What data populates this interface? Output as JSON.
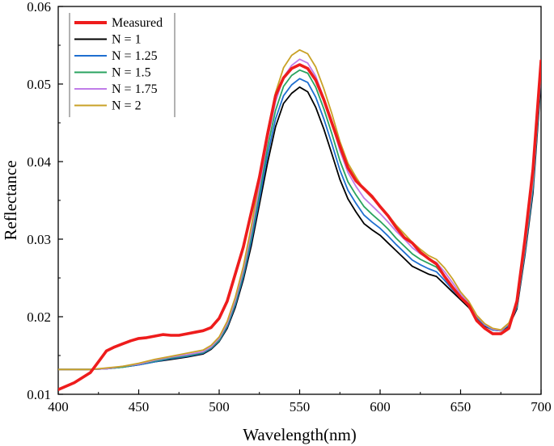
{
  "chart_data": {
    "type": "line",
    "title": "",
    "xlabel": "Wavelength(nm)",
    "ylabel": "Reflectance",
    "xlim": [
      400,
      700
    ],
    "ylim": [
      0.01,
      0.06
    ],
    "xticks": [
      400,
      450,
      500,
      550,
      600,
      650,
      700
    ],
    "yticks": [
      0.01,
      0.02,
      0.03,
      0.04,
      0.05,
      0.06
    ],
    "ytick_labels": [
      "0.01",
      "0.02",
      "0.03",
      "0.04",
      "0.05",
      "0.06"
    ],
    "grid": false,
    "legend_position": "top-left",
    "series": [
      {
        "name": "Measured",
        "color": "#ee1c1c",
        "emphasis": true,
        "x": [
          400,
          410,
          420,
          425,
          430,
          435,
          440,
          445,
          450,
          455,
          460,
          465,
          470,
          475,
          480,
          485,
          490,
          495,
          500,
          505,
          510,
          515,
          520,
          525,
          530,
          535,
          540,
          545,
          550,
          555,
          560,
          565,
          570,
          575,
          580,
          585,
          590,
          595,
          600,
          605,
          610,
          615,
          620,
          625,
          630,
          635,
          640,
          645,
          650,
          655,
          660,
          665,
          670,
          675,
          680,
          685,
          690,
          695,
          700
        ],
        "y": [
          0.0106,
          0.0115,
          0.0128,
          0.0142,
          0.0156,
          0.0161,
          0.0165,
          0.0169,
          0.0172,
          0.0173,
          0.0175,
          0.0177,
          0.0176,
          0.0176,
          0.0178,
          0.018,
          0.0182,
          0.0186,
          0.0198,
          0.022,
          0.0255,
          0.029,
          0.0335,
          0.038,
          0.0435,
          0.0485,
          0.0508,
          0.052,
          0.0525,
          0.052,
          0.0505,
          0.048,
          0.045,
          0.042,
          0.0392,
          0.0375,
          0.0365,
          0.0355,
          0.0342,
          0.033,
          0.0315,
          0.0302,
          0.0295,
          0.0283,
          0.0275,
          0.0268,
          0.0252,
          0.0238,
          0.0225,
          0.0215,
          0.0195,
          0.0185,
          0.0178,
          0.0178,
          0.0185,
          0.022,
          0.03,
          0.039,
          0.053
        ]
      },
      {
        "name": "N = 1",
        "color": "#000000",
        "emphasis": false,
        "x": [
          400,
          410,
          420,
          430,
          440,
          450,
          460,
          470,
          480,
          490,
          495,
          500,
          505,
          510,
          515,
          520,
          525,
          530,
          535,
          540,
          545,
          550,
          555,
          560,
          565,
          570,
          575,
          580,
          585,
          590,
          595,
          600,
          605,
          610,
          615,
          620,
          625,
          630,
          635,
          640,
          645,
          650,
          655,
          660,
          665,
          670,
          675,
          680,
          685,
          690,
          695,
          700
        ],
        "y": [
          0.0132,
          0.0132,
          0.0132,
          0.0133,
          0.0135,
          0.0138,
          0.0142,
          0.0145,
          0.0148,
          0.0152,
          0.0158,
          0.0168,
          0.0185,
          0.0212,
          0.0248,
          0.0292,
          0.0345,
          0.0398,
          0.0445,
          0.0475,
          0.0488,
          0.0496,
          0.049,
          0.047,
          0.0442,
          0.041,
          0.0377,
          0.0352,
          0.0335,
          0.032,
          0.0312,
          0.0305,
          0.0295,
          0.0285,
          0.0275,
          0.0265,
          0.026,
          0.0255,
          0.0252,
          0.0242,
          0.0232,
          0.0222,
          0.0212,
          0.0198,
          0.0188,
          0.0183,
          0.0182,
          0.0188,
          0.021,
          0.028,
          0.036,
          0.0505
        ]
      },
      {
        "name": "N = 1.25",
        "color": "#1f6fd0",
        "emphasis": false,
        "x": [
          400,
          410,
          420,
          430,
          440,
          450,
          460,
          470,
          480,
          490,
          495,
          500,
          505,
          510,
          515,
          520,
          525,
          530,
          535,
          540,
          545,
          550,
          555,
          560,
          565,
          570,
          575,
          580,
          585,
          590,
          595,
          600,
          605,
          610,
          615,
          620,
          625,
          630,
          635,
          640,
          645,
          650,
          655,
          660,
          665,
          670,
          675,
          680,
          685,
          690,
          695,
          700
        ],
        "y": [
          0.0132,
          0.0132,
          0.0132,
          0.0133,
          0.0135,
          0.0138,
          0.0142,
          0.0146,
          0.0149,
          0.0153,
          0.0159,
          0.0169,
          0.0187,
          0.0215,
          0.0252,
          0.0298,
          0.0352,
          0.0408,
          0.0455,
          0.0485,
          0.0499,
          0.0507,
          0.0502,
          0.0483,
          0.0455,
          0.0423,
          0.0389,
          0.0363,
          0.0346,
          0.0331,
          0.0322,
          0.0314,
          0.0304,
          0.0293,
          0.0283,
          0.0273,
          0.0267,
          0.0262,
          0.0258,
          0.0247,
          0.0235,
          0.0224,
          0.0214,
          0.0199,
          0.0189,
          0.0183,
          0.0182,
          0.0189,
          0.0212,
          0.0283,
          0.0365,
          0.051
        ]
      },
      {
        "name": "N = 1.5",
        "color": "#2aa35f",
        "emphasis": false,
        "x": [
          400,
          410,
          420,
          430,
          440,
          450,
          460,
          470,
          480,
          490,
          495,
          500,
          505,
          510,
          515,
          520,
          525,
          530,
          535,
          540,
          545,
          550,
          555,
          560,
          565,
          570,
          575,
          580,
          585,
          590,
          595,
          600,
          605,
          610,
          615,
          620,
          625,
          630,
          635,
          640,
          645,
          650,
          655,
          660,
          665,
          670,
          675,
          680,
          685,
          690,
          695,
          700
        ],
        "y": [
          0.0132,
          0.0132,
          0.0132,
          0.0133,
          0.0135,
          0.0139,
          0.0143,
          0.0147,
          0.015,
          0.0154,
          0.016,
          0.017,
          0.0189,
          0.0218,
          0.0256,
          0.0304,
          0.036,
          0.0418,
          0.0466,
          0.0497,
          0.0511,
          0.0518,
          0.0514,
          0.0496,
          0.0468,
          0.0436,
          0.0401,
          0.0374,
          0.0357,
          0.0342,
          0.0332,
          0.0323,
          0.0313,
          0.0301,
          0.0291,
          0.0281,
          0.0274,
          0.0269,
          0.0264,
          0.0252,
          0.0239,
          0.0226,
          0.0216,
          0.02,
          0.019,
          0.0184,
          0.0182,
          0.019,
          0.0214,
          0.0287,
          0.037,
          0.0515
        ]
      },
      {
        "name": "N = 1.75",
        "color": "#c07de8",
        "emphasis": false,
        "x": [
          400,
          410,
          420,
          430,
          440,
          450,
          460,
          470,
          480,
          490,
          495,
          500,
          505,
          510,
          515,
          520,
          525,
          530,
          535,
          540,
          545,
          550,
          555,
          560,
          565,
          570,
          575,
          580,
          585,
          590,
          595,
          600,
          605,
          610,
          615,
          620,
          625,
          630,
          635,
          640,
          645,
          650,
          655,
          660,
          665,
          670,
          675,
          680,
          685,
          690,
          695,
          700
        ],
        "y": [
          0.0132,
          0.0132,
          0.0132,
          0.0133,
          0.0136,
          0.0139,
          0.0144,
          0.0148,
          0.0151,
          0.0155,
          0.0161,
          0.0172,
          0.0191,
          0.0221,
          0.026,
          0.031,
          0.0368,
          0.0428,
          0.0477,
          0.0509,
          0.0524,
          0.0532,
          0.0527,
          0.051,
          0.0482,
          0.045,
          0.0414,
          0.0386,
          0.0368,
          0.0353,
          0.0343,
          0.0333,
          0.0322,
          0.031,
          0.03,
          0.0289,
          0.0281,
          0.0275,
          0.027,
          0.0258,
          0.0244,
          0.0229,
          0.0218,
          0.0201,
          0.019,
          0.0184,
          0.0182,
          0.0191,
          0.0216,
          0.029,
          0.0375,
          0.052
        ]
      },
      {
        "name": "N = 2",
        "color": "#c9a227",
        "emphasis": false,
        "x": [
          400,
          410,
          420,
          430,
          440,
          450,
          460,
          470,
          480,
          490,
          495,
          500,
          505,
          510,
          515,
          520,
          525,
          530,
          535,
          540,
          545,
          550,
          555,
          560,
          565,
          570,
          575,
          580,
          585,
          590,
          595,
          600,
          605,
          610,
          615,
          620,
          625,
          630,
          635,
          640,
          645,
          650,
          655,
          660,
          665,
          670,
          675,
          680,
          685,
          690,
          695,
          700
        ],
        "y": [
          0.0132,
          0.0132,
          0.0132,
          0.0134,
          0.0136,
          0.014,
          0.0145,
          0.0149,
          0.0153,
          0.0157,
          0.0163,
          0.0174,
          0.0194,
          0.0225,
          0.0265,
          0.0317,
          0.0377,
          0.0439,
          0.0489,
          0.0521,
          0.0537,
          0.0544,
          0.0539,
          0.0522,
          0.0494,
          0.0462,
          0.0426,
          0.0398,
          0.038,
          0.0364,
          0.0353,
          0.0343,
          0.0331,
          0.0318,
          0.0307,
          0.0296,
          0.0287,
          0.0279,
          0.0274,
          0.0263,
          0.0249,
          0.0232,
          0.022,
          0.0202,
          0.0191,
          0.0185,
          0.0183,
          0.0192,
          0.0218,
          0.0293,
          0.038,
          0.0525
        ]
      }
    ]
  }
}
